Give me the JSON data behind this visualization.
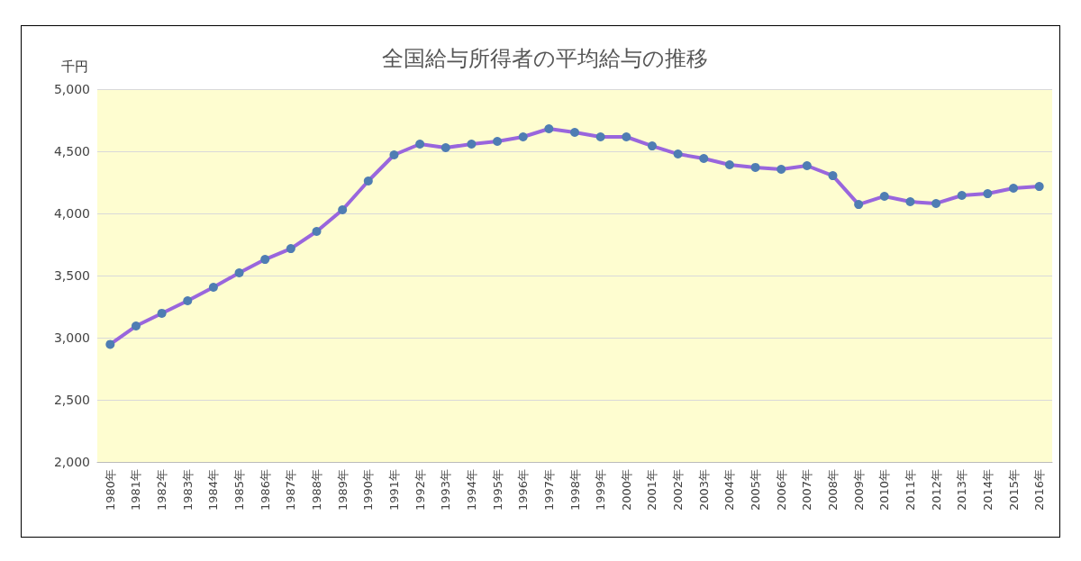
{
  "chart_data": {
    "type": "line",
    "title": "全国給与所得者の平均給与の推移",
    "ylabel": "千円",
    "categories": [
      "1980年",
      "1981年",
      "1982年",
      "1983年",
      "1984年",
      "1985年",
      "1986年",
      "1987年",
      "1988年",
      "1989年",
      "1990年",
      "1991年",
      "1992年",
      "1993年",
      "1994年",
      "1995年",
      "1996年",
      "1997年",
      "1998年",
      "1999年",
      "2000年",
      "2001年",
      "2002年",
      "2003年",
      "2004年",
      "2005年",
      "2006年",
      "2007年",
      "2008年",
      "2009年",
      "2010年",
      "2011年",
      "2012年",
      "2013年",
      "2014年",
      "2015年",
      "2016年"
    ],
    "series": [
      {
        "color": "#9966dd",
        "values": [
          2946,
          3094,
          3196,
          3297,
          3406,
          3522,
          3630,
          3717,
          3855,
          4029,
          4261,
          4471,
          4558,
          4529,
          4558,
          4580,
          4616,
          4681,
          4652,
          4616,
          4616,
          4543,
          4478,
          4442,
          4391,
          4370,
          4355,
          4384,
          4304,
          4072,
          4138,
          4094,
          4080,
          4145,
          4159,
          4203,
          4217
        ]
      }
    ],
    "ylim": [
      2000,
      5000
    ],
    "yticks": [
      {
        "value": 2000,
        "label": "2,000"
      },
      {
        "value": 2500,
        "label": "2,500"
      },
      {
        "value": 3000,
        "label": "3,000"
      },
      {
        "value": 3500,
        "label": "3,500"
      },
      {
        "value": 4000,
        "label": "4,000"
      },
      {
        "value": 4500,
        "label": "4,500"
      },
      {
        "value": 5000,
        "label": "5,000"
      }
    ],
    "grid": "y",
    "marker": "circle"
  }
}
